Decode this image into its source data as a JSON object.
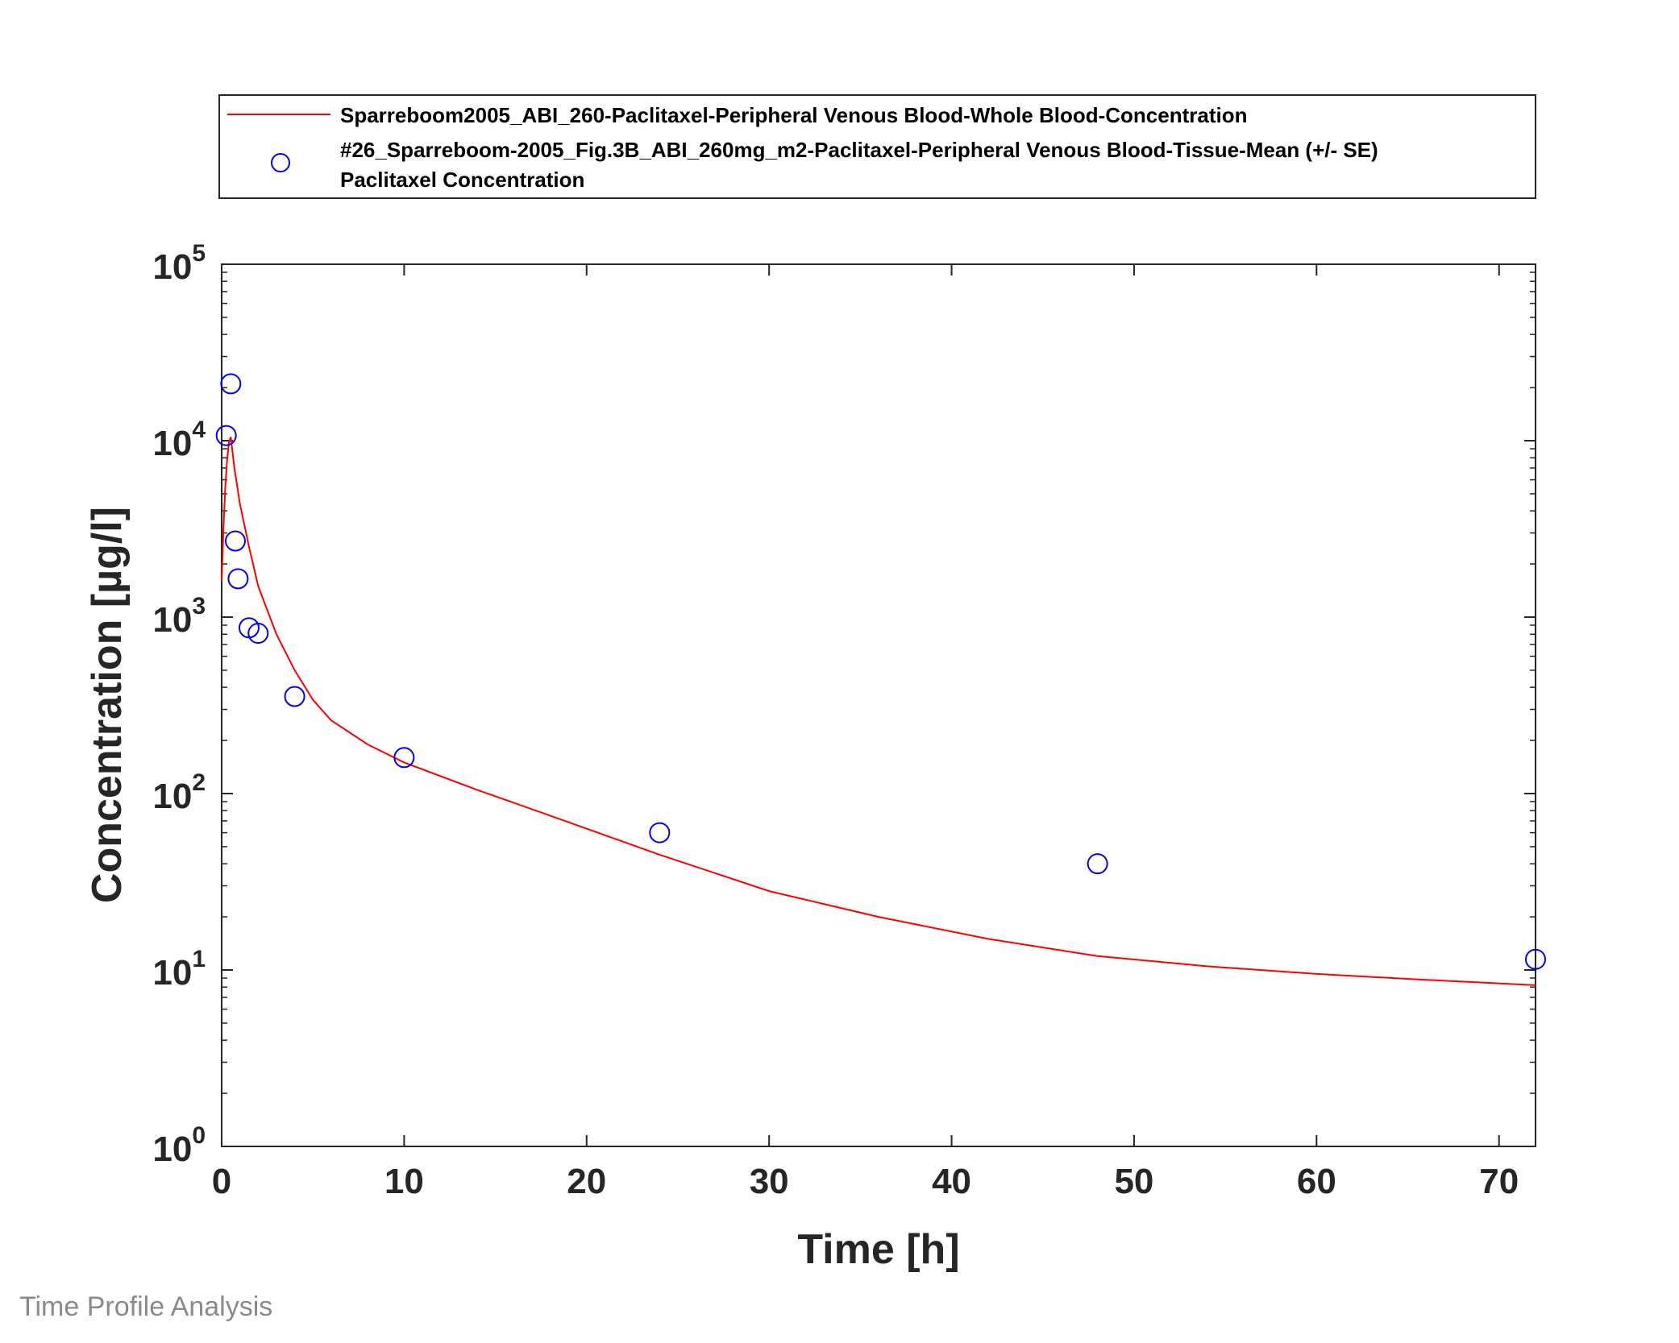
{
  "footer_label": "Time Profile Analysis",
  "legend": {
    "entries": [
      {
        "lines": [
          "Sparreboom2005_ABI_260-Paclitaxel-Peripheral Venous Blood-Whole Blood-Concentration"
        ],
        "marker": "line",
        "color": "#ff0000"
      },
      {
        "lines": [
          "#26_Sparreboom-2005_Fig.3B_ABI_260mg_m2-Paclitaxel-Peripheral Venous Blood-Tissue-Mean (+/- SE)",
          "Paclitaxel Concentration"
        ],
        "marker": "circle",
        "color": "#0000ff"
      }
    ],
    "placement": "top, above plot area"
  },
  "chart_data": {
    "type": "line",
    "xlabel": "Time [h]",
    "ylabel": "Concentration [µg/l]",
    "xlim": [
      0,
      72
    ],
    "ylim": [
      1,
      100000
    ],
    "yscale": "log",
    "xticks": [
      0,
      10,
      20,
      30,
      40,
      50,
      60,
      70
    ],
    "yticks": [
      {
        "base": "10",
        "exp": "0"
      },
      {
        "base": "10",
        "exp": "1"
      },
      {
        "base": "10",
        "exp": "2"
      },
      {
        "base": "10",
        "exp": "3"
      },
      {
        "base": "10",
        "exp": "4"
      },
      {
        "base": "10",
        "exp": "5"
      }
    ],
    "grid": false,
    "series": [
      {
        "name": "Sparreboom2005_ABI_260-Paclitaxel-Peripheral Venous Blood-Whole Blood-Concentration",
        "kind": "line",
        "color": "#ff0000",
        "x": [
          0,
          0.1,
          0.2,
          0.3,
          0.4,
          0.5,
          0.7,
          1.0,
          1.5,
          2,
          3,
          4,
          5,
          6,
          8,
          10,
          14,
          18,
          24,
          30,
          36,
          42,
          48,
          54,
          60,
          66,
          72
        ],
        "y": [
          1600,
          3200,
          5500,
          7800,
          9800,
          10500,
          7000,
          4400,
          2500,
          1500,
          800,
          500,
          340,
          260,
          190,
          150,
          105,
          75,
          45,
          28,
          20,
          15,
          12,
          10.5,
          9.5,
          8.8,
          8.2
        ]
      },
      {
        "name": "#26_Sparreboom-2005_Fig.3B_ABI_260mg_m2-Paclitaxel-Peripheral Venous Blood-Tissue-Mean (+/- SE) Paclitaxel Concentration",
        "kind": "scatter",
        "marker": "circle",
        "color": "#0000ff",
        "x": [
          0.25,
          0.5,
          0.75,
          0.9,
          1.5,
          2,
          4,
          10,
          24,
          48,
          72
        ],
        "y": [
          10700,
          21000,
          2700,
          1650,
          870,
          810,
          355,
          160,
          60,
          40,
          11.5
        ]
      }
    ]
  }
}
